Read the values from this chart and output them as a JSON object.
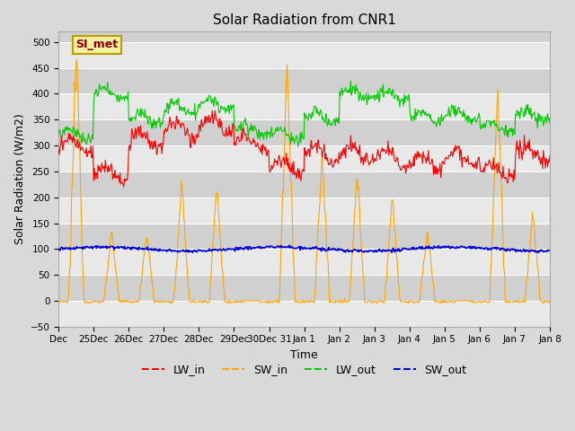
{
  "title": "Solar Radiation from CNR1",
  "xlabel": "Time",
  "ylabel": "Solar Radiation (W/m2)",
  "ylim": [
    -50,
    520
  ],
  "yticks": [
    -50,
    0,
    50,
    100,
    150,
    200,
    250,
    300,
    350,
    400,
    450,
    500
  ],
  "annotation_text": "SI_met",
  "colors": {
    "LW_in": "#ff0000",
    "SW_in": "#ffa500",
    "LW_out": "#00cc00",
    "SW_out": "#0000dd"
  },
  "linewidths": {
    "LW_in": 0.8,
    "SW_in": 0.8,
    "LW_out": 0.8,
    "SW_out": 1.2
  },
  "bg_outer": "#d9d9d9",
  "bg_plot_dark": "#d0d0d0",
  "bg_plot_light": "#e8e8e8",
  "grid_color": "#ffffff",
  "n_days": 14,
  "day_peaks_SW": [
    490,
    135,
    135,
    225,
    220,
    0,
    460,
    280,
    245,
    205,
    135,
    0,
    415,
    175
  ],
  "base_LW_in": [
    300,
    245,
    310,
    330,
    340,
    305,
    260,
    285,
    285,
    275,
    270,
    278,
    248,
    285
  ],
  "base_LW_out": [
    322,
    400,
    352,
    372,
    378,
    330,
    320,
    355,
    400,
    396,
    355,
    358,
    335,
    358
  ],
  "SW_out_base": 100,
  "tick_labels": [
    "Dec",
    "25Dec",
    "26Dec",
    "27Dec",
    "28Dec",
    "29Dec",
    "30Dec 31",
    "Jan 1",
    "Jan 2",
    "Jan 3",
    "Jan 4",
    "Jan 5",
    "Jan 6",
    "Jan 7",
    "Jan 8"
  ],
  "tick_fontsize": 7.5,
  "label_fontsize": 9,
  "title_fontsize": 11,
  "legend_fontsize": 9
}
